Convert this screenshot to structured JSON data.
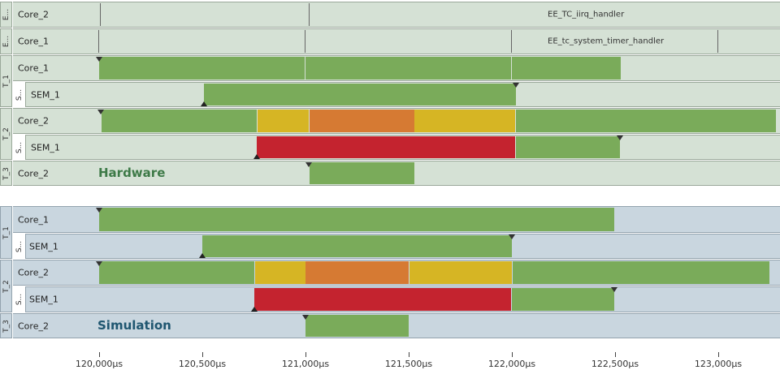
{
  "colors": {
    "run": "#7aab5a",
    "ready": "#d6b524",
    "preempt": "#d67a33",
    "blocked": "#c4232f"
  },
  "hardware": {
    "title": "Hardware",
    "rows": [
      {
        "group": "E...",
        "label": "Core_2",
        "event_text": "EE_TC_iirq_handler"
      },
      {
        "group": "E...",
        "label": "Core_1",
        "event_text": "EE_tc_system_timer_handler"
      },
      {
        "group": "T_1",
        "label": "Core_1"
      },
      {
        "group": "T_1",
        "sub": "S...",
        "label": "SEM_1"
      },
      {
        "group": "T_2",
        "label": "Core_2"
      },
      {
        "group": "T_2",
        "sub": "S...",
        "label": "SEM_1"
      },
      {
        "group": "T_3",
        "label": "Core_2"
      }
    ]
  },
  "simulation": {
    "title": "Simulation",
    "rows": [
      {
        "group": "T_1",
        "label": "Core_1"
      },
      {
        "group": "T_1",
        "sub": "S...",
        "label": "SEM_1"
      },
      {
        "group": "T_2",
        "label": "Core_2"
      },
      {
        "group": "T_2",
        "sub": "S...",
        "label": "SEM_1"
      },
      {
        "group": "T_3",
        "label": "Core_2"
      }
    ]
  },
  "axis": {
    "ticks": [
      "120,000µs",
      "120,500µs",
      "121,000µs",
      "121,500µs",
      "122,000µs",
      "122,500µs",
      "123,000µs"
    ]
  }
}
